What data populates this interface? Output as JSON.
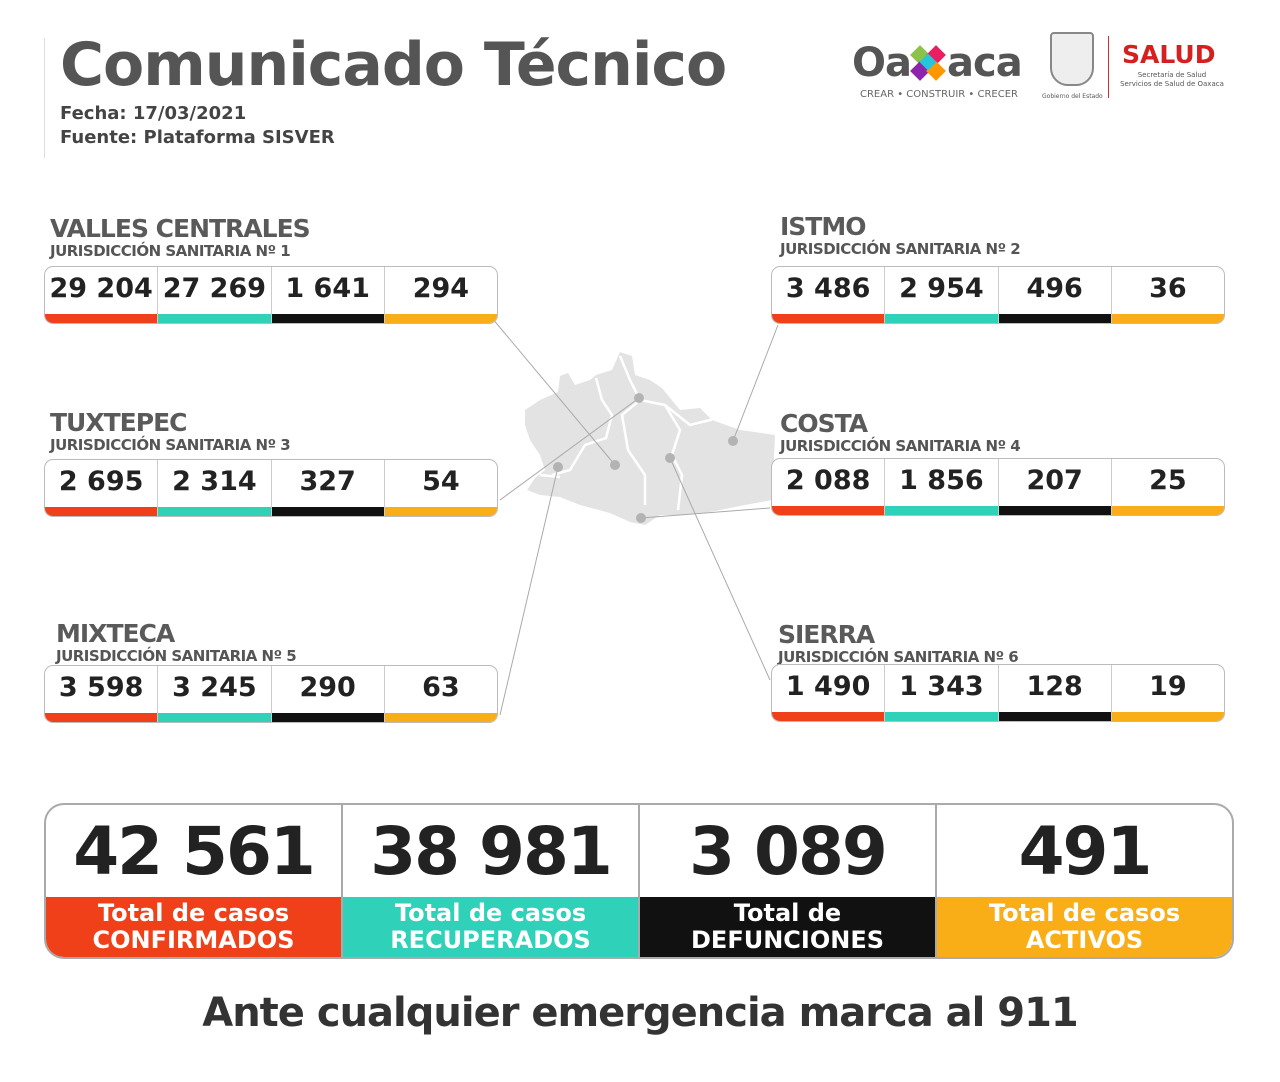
{
  "header": {
    "title": "Comunicado Técnico",
    "date": "Fecha: 17/03/2021",
    "source": "Fuente: Plataforma SISVER"
  },
  "logos": {
    "oaxaca": "Oaxaca",
    "oaxaca_tagline": "CREAR • CONSTRUIR • CRECER",
    "gobierno": "Gobierno del Estado",
    "salud": "SALUD",
    "salud_sub1": "Secretaría de Salud",
    "salud_sub2": "Servicios de Salud de Oaxaca"
  },
  "colors": {
    "confirmed": "#f04019",
    "recovered": "#2fd1b8",
    "deaths": "#111111",
    "active": "#f9ad17"
  },
  "regions": [
    {
      "name": "VALLES CENTRALES",
      "jurisdiction": "JURISDICCIÓN SANITARIA Nº 1",
      "values": [
        "29 204",
        "27 269",
        "1 641",
        "294"
      ]
    },
    {
      "name": "ISTMO",
      "jurisdiction": "JURISDICCIÓN SANITARIA Nº 2",
      "values": [
        "3 486",
        "2 954",
        "496",
        "36"
      ]
    },
    {
      "name": "TUXTEPEC",
      "jurisdiction": "JURISDICCIÓN SANITARIA Nº 3",
      "values": [
        "2 695",
        "2 314",
        "327",
        "54"
      ]
    },
    {
      "name": "COSTA",
      "jurisdiction": "JURISDICCIÓN SANITARIA Nº 4",
      "values": [
        "2 088",
        "1 856",
        "207",
        "25"
      ]
    },
    {
      "name": "MIXTECA",
      "jurisdiction": "JURISDICCIÓN SANITARIA Nº 5",
      "values": [
        "3 598",
        "3 245",
        "290",
        "63"
      ]
    },
    {
      "name": "SIERRA",
      "jurisdiction": "JURISDICCIÓN SANITARIA Nº 6",
      "values": [
        "1 490",
        "1 343",
        "128",
        "19"
      ]
    }
  ],
  "totals": [
    {
      "value": "42 561",
      "label1": "Total de casos",
      "label2": "CONFIRMADOS"
    },
    {
      "value": "38 981",
      "label1": "Total de casos",
      "label2": "RECUPERADOS"
    },
    {
      "value": "3 089",
      "label1": "Total de",
      "label2": "DEFUNCIONES"
    },
    {
      "value": "491",
      "label1": "Total de casos",
      "label2": "ACTIVOS"
    }
  ],
  "footer": "Ante cualquier emergencia marca al 911"
}
